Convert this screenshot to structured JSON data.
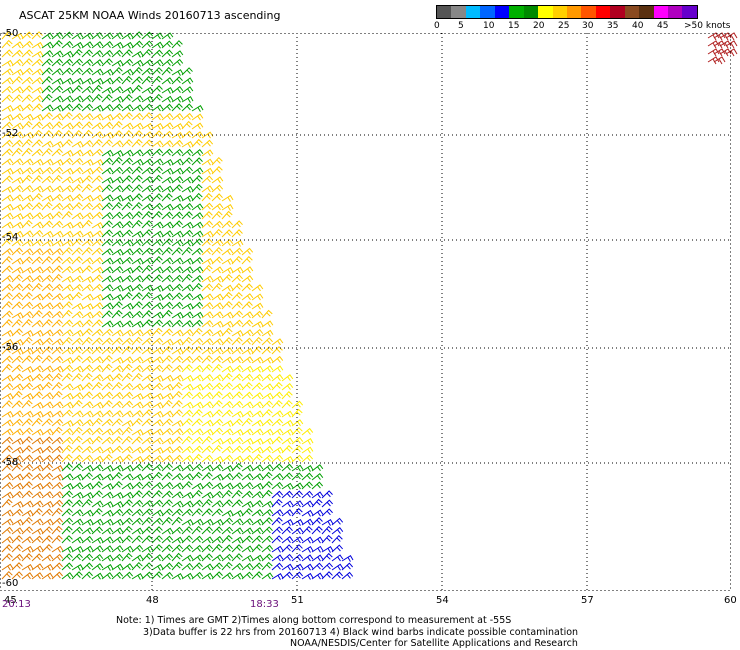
{
  "title": "ASCAT 25KM NOAA Winds 20160713 ascending",
  "legend": {
    "colors": [
      "#555555",
      "#888888",
      "#00bbff",
      "#0066ff",
      "#0000ff",
      "#00b000",
      "#008a00",
      "#ffff00",
      "#ffd000",
      "#ff9900",
      "#ff5500",
      "#ff0000",
      "#b00020",
      "#8a4a20",
      "#5a3010",
      "#ff00ff",
      "#b000c0",
      "#6600cc"
    ],
    "labels": [
      "0",
      "5",
      "10",
      "15",
      "20",
      "25",
      "30",
      "35",
      "40",
      "45",
      ">50 knots"
    ]
  },
  "axes": {
    "x_ticks": [
      "45",
      "48",
      "51",
      "54",
      "57",
      "60"
    ],
    "y_ticks": [
      "-50",
      "-52",
      "-54",
      "-56",
      "-58",
      "-60"
    ]
  },
  "times": {
    "left": "20:13",
    "mid": "18:33"
  },
  "notes": {
    "line1": "Note: 1) Times are GMT 2)Times along bottom correspond to measurement at -55S",
    "line2": "3)Data buffer is 22 hrs from 20160713 4) Black wind barbs indicate possible contamination",
    "line3": "NOAA/NESDIS/Center for Satellite Applications and Research"
  }
}
